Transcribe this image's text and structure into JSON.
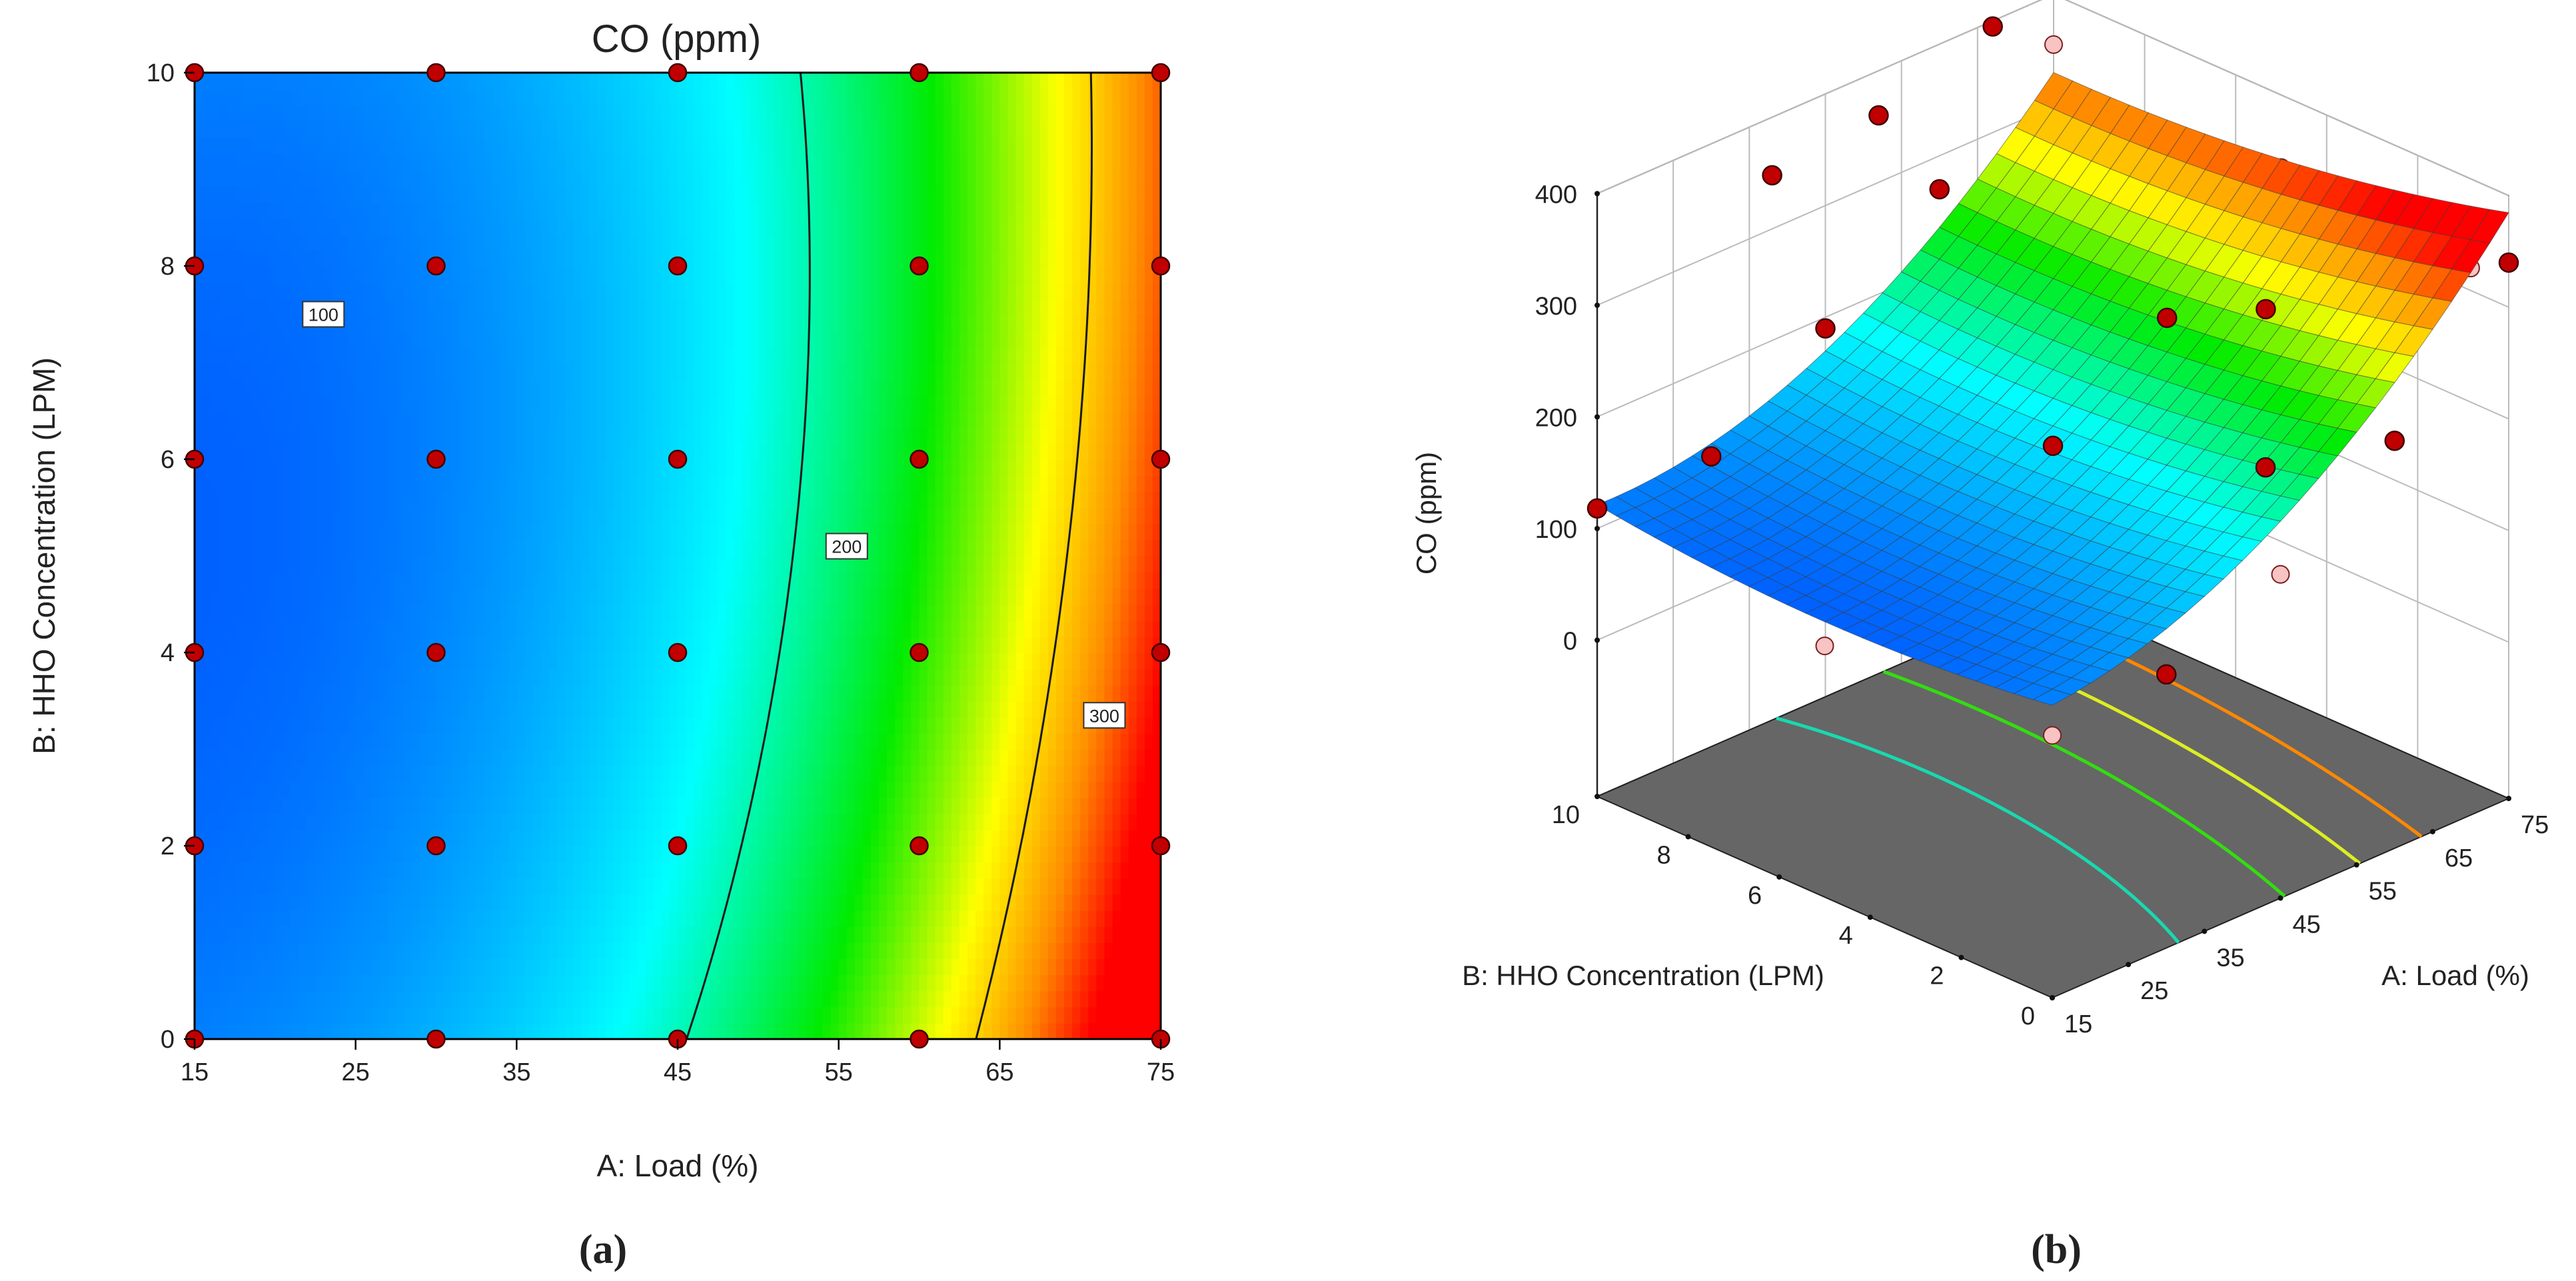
{
  "chart_data": [
    {
      "type": "heatmap",
      "panel_label": "(a)",
      "title": "CO (ppm)",
      "xlabel": "A: Load (%)",
      "ylabel": "B: HHO Concentration (LPM)",
      "xlim": [
        15,
        75
      ],
      "ylim": [
        0,
        10
      ],
      "x_ticks": [
        15,
        25,
        35,
        45,
        55,
        65,
        75
      ],
      "y_ticks": [
        0,
        2,
        4,
        6,
        8,
        10
      ],
      "color_range": [
        60,
        350
      ],
      "contour_levels": [
        {
          "value": 100,
          "label": "100",
          "label_x": 23,
          "label_y": 7.5
        },
        {
          "value": 200,
          "label": "200",
          "label_x": 55.5,
          "label_y": 5.1
        },
        {
          "value": 300,
          "label": "300",
          "label_x": 71.5,
          "label_y": 3.35
        }
      ],
      "design_points": [
        {
          "x": 15,
          "y": 0
        },
        {
          "x": 15,
          "y": 2
        },
        {
          "x": 15,
          "y": 4
        },
        {
          "x": 15,
          "y": 6
        },
        {
          "x": 15,
          "y": 8
        },
        {
          "x": 15,
          "y": 10
        },
        {
          "x": 30,
          "y": 0
        },
        {
          "x": 30,
          "y": 2
        },
        {
          "x": 30,
          "y": 4
        },
        {
          "x": 30,
          "y": 6
        },
        {
          "x": 30,
          "y": 8
        },
        {
          "x": 30,
          "y": 10
        },
        {
          "x": 45,
          "y": 0
        },
        {
          "x": 45,
          "y": 2
        },
        {
          "x": 45,
          "y": 4
        },
        {
          "x": 45,
          "y": 6
        },
        {
          "x": 45,
          "y": 8
        },
        {
          "x": 45,
          "y": 10
        },
        {
          "x": 60,
          "y": 0
        },
        {
          "x": 60,
          "y": 2
        },
        {
          "x": 60,
          "y": 4
        },
        {
          "x": 60,
          "y": 6
        },
        {
          "x": 60,
          "y": 8
        },
        {
          "x": 60,
          "y": 10
        },
        {
          "x": 75,
          "y": 0
        },
        {
          "x": 75,
          "y": 2
        },
        {
          "x": 75,
          "y": 4
        },
        {
          "x": 75,
          "y": 6
        },
        {
          "x": 75,
          "y": 8
        },
        {
          "x": 75,
          "y": 10
        }
      ]
    },
    {
      "type": "surface",
      "panel_label": "(b)",
      "zlabel": "CO (ppm)",
      "xlabel": "A: Load (%)",
      "ylabel": "B: HHO Concentration (LPM)",
      "xlim": [
        15,
        75
      ],
      "ylim": [
        0,
        10
      ],
      "zlim": [
        0,
        400
      ],
      "x_ticks": [
        15,
        25,
        35,
        45,
        55,
        65,
        75
      ],
      "y_ticks": [
        0,
        2,
        4,
        6,
        8,
        10
      ],
      "z_ticks": [
        0,
        100,
        200,
        300,
        400
      ],
      "observed_points": [
        {
          "x": 15,
          "y": 0,
          "z": 95,
          "above": false
        },
        {
          "x": 15,
          "y": 5,
          "z": 85,
          "above": false
        },
        {
          "x": 15,
          "y": 10,
          "z": 118,
          "above": true
        },
        {
          "x": 30,
          "y": 0,
          "z": 105,
          "above": true
        },
        {
          "x": 30,
          "y": 10,
          "z": 120,
          "above": true
        },
        {
          "x": 45,
          "y": 0,
          "z": 150,
          "above": false
        },
        {
          "x": 45,
          "y": 5,
          "z": 175,
          "above": true
        },
        {
          "x": 45,
          "y": 10,
          "z": 190,
          "above": true
        },
        {
          "x": 60,
          "y": 0,
          "z": 225,
          "above": true
        },
        {
          "x": 60,
          "y": 5,
          "z": 245,
          "above": true
        },
        {
          "x": 60,
          "y": 10,
          "z": 270,
          "above": true
        },
        {
          "x": 75,
          "y": 0,
          "z": 340,
          "above": true
        },
        {
          "x": 75,
          "y": 5,
          "z": 335,
          "above": false
        },
        {
          "x": 75,
          "y": 10,
          "z": 355,
          "above": false
        },
        {
          "x": 52,
          "y": 10,
          "z": 360,
          "above": true
        },
        {
          "x": 67,
          "y": 10,
          "z": 395,
          "above": true
        },
        {
          "x": 38,
          "y": 10,
          "z": 348,
          "above": true
        },
        {
          "x": 67,
          "y": 4,
          "z": 250,
          "above": true
        },
        {
          "x": 55,
          "y": 2,
          "z": 180,
          "above": true
        },
        {
          "x": 70,
          "y": 0,
          "z": 350,
          "above": false
        }
      ]
    }
  ]
}
